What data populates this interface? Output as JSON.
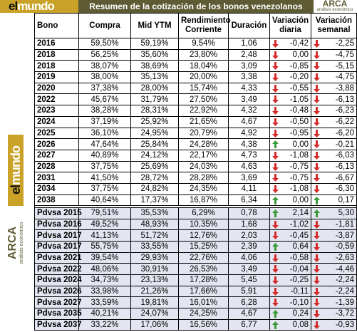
{
  "header": {
    "title": "Resumen de la cotización de los bonos venezolanos",
    "brand_left": [
      "el",
      "mundo"
    ],
    "brand_right": "ARCA",
    "brand_right_sub": "análisis económico"
  },
  "table": {
    "columns": [
      "Bono",
      "Compra",
      "Mid YTM",
      "Rendimiento Corriente",
      "Duración",
      "Variación diaria",
      "Variación semanal"
    ],
    "sections": [
      {
        "rows": [
          {
            "cells": [
              "2016",
              "59,50%",
              "59,19%",
              "9,54%",
              "1,06",
              "-0,42",
              "-2,25"
            ],
            "arrows": [
              "down",
              "down"
            ]
          },
          {
            "cells": [
              "2018",
              "56,25%",
              "35,60%",
              "23,80%",
              "2,48",
              "0,00",
              "-4,75"
            ],
            "arrows": [
              "down",
              "down"
            ]
          },
          {
            "cells": [
              "2018",
              "38,07%",
              "38,69%",
              "18,04%",
              "3,09",
              "-0,85",
              "-5,15"
            ],
            "arrows": [
              "down",
              "down"
            ]
          },
          {
            "cells": [
              "2019",
              "38,00%",
              "35,13%",
              "20,00%",
              "3,38",
              "-0,20",
              "-4,75"
            ],
            "arrows": [
              "down",
              "down"
            ]
          },
          {
            "cells": [
              "2020",
              "37,38%",
              "28,00%",
              "15,74%",
              "4,33",
              "-0,55",
              "-3,88"
            ],
            "arrows": [
              "down",
              "down"
            ]
          },
          {
            "cells": [
              "2022",
              "45,67%",
              "31,79%",
              "27,50%",
              "3,49",
              "-1,05",
              "-6,13"
            ],
            "arrows": [
              "down",
              "down"
            ]
          },
          {
            "cells": [
              "2023",
              "38,28%",
              "28,31%",
              "22,92%",
              "4,32",
              "-0,48",
              "-6,23"
            ],
            "arrows": [
              "down",
              "down"
            ]
          },
          {
            "cells": [
              "2024",
              "37,19%",
              "25,92%",
              "21,65%",
              "4,67",
              "-0,50",
              "-6,22"
            ],
            "arrows": [
              "down",
              "down"
            ]
          },
          {
            "cells": [
              "2025",
              "36,10%",
              "24,95%",
              "20,79%",
              "4,92",
              "-0,95",
              "-6,20"
            ],
            "arrows": [
              "down",
              "down"
            ]
          },
          {
            "cells": [
              "2026",
              "47,64%",
              "25,84%",
              "24,28%",
              "4,38",
              "0,00",
              "-0,21"
            ],
            "arrows": [
              "up",
              "down"
            ]
          },
          {
            "cells": [
              "2027",
              "40,89%",
              "24,12%",
              "22,17%",
              "4,73",
              "-1,08",
              "-6,03"
            ],
            "arrows": [
              "down",
              "down"
            ]
          },
          {
            "cells": [
              "2028",
              "37,75%",
              "25,69%",
              "24,03%",
              "4,63",
              "-0,75",
              "-6,13"
            ],
            "arrows": [
              "down",
              "down"
            ]
          },
          {
            "cells": [
              "2031",
              "41,50%",
              "28,72%",
              "28,28%",
              "3,69",
              "-0,75",
              "-6,67"
            ],
            "arrows": [
              "down",
              "down"
            ]
          },
          {
            "cells": [
              "2034",
              "37,75%",
              "24,82%",
              "24,35%",
              "4,11",
              "-1,08",
              "-6,30"
            ],
            "arrows": [
              "down",
              "down"
            ]
          },
          {
            "cells": [
              "2038",
              "40,64%",
              "17,37%",
              "16,87%",
              "6,34",
              "0,00",
              "0,17"
            ],
            "arrows": [
              "up",
              "up"
            ]
          }
        ]
      },
      {
        "rows": [
          {
            "cells": [
              "Pdvsa 2015",
              "79,51%",
              "35,53%",
              "6,29%",
              "0,78",
              "2,14",
              "5,30"
            ],
            "arrows": [
              "up",
              "up"
            ]
          },
          {
            "cells": [
              "Pdvsa 2016",
              "49,52%",
              "48,93%",
              "10,35%",
              "1,68",
              "-1,02",
              "-1,81"
            ],
            "arrows": [
              "down",
              "down"
            ]
          },
          {
            "cells": [
              "Pdvsa 2017",
              "41,13%",
              "51,72%",
              "12,76%",
              "2,03",
              "-0,45",
              "-3,87"
            ],
            "arrows": [
              "down",
              "down"
            ]
          },
          {
            "cells": [
              "Pdvsa 2017",
              "55,75%",
              "33,55%",
              "15,25%",
              "2,39",
              "0,64",
              "-0,59"
            ],
            "arrows": [
              "up",
              "down"
            ]
          },
          {
            "cells": [
              "Pdvsa 2021",
              "39,54%",
              "29,93%",
              "22,76%",
              "4,06",
              "-0,58",
              "-2,63"
            ],
            "arrows": [
              "down",
              "down"
            ]
          },
          {
            "cells": [
              "Pdvsa 2022",
              "48,06%",
              "30,91%",
              "26,53%",
              "3,49",
              "-0,04",
              "-4,46"
            ],
            "arrows": [
              "down",
              "down"
            ]
          },
          {
            "cells": [
              "Pdvsa 2024",
              "34,73%",
              "23,13%",
              "17,28%",
              "5,45",
              "-0,25",
              "-2,24"
            ],
            "arrows": [
              "down",
              "down"
            ]
          },
          {
            "cells": [
              "Pdvsa 2026",
              "33,98%",
              "21,26%",
              "17,66%",
              "5,91",
              "-0,11",
              "-2,24"
            ],
            "arrows": [
              "down",
              "down"
            ]
          },
          {
            "cells": [
              "Pdvsa 2027",
              "33,59%",
              "19,81%",
              "16,01%",
              "6,28",
              "-0,10",
              "-1,39"
            ],
            "arrows": [
              "down",
              "down"
            ]
          },
          {
            "cells": [
              "Pdvsa 2035",
              "40,21%",
              "24,07%",
              "24,25%",
              "4,67",
              "0,24",
              "-3,72"
            ],
            "arrows": [
              "up",
              "down"
            ]
          },
          {
            "cells": [
              "Pdvsa 2037",
              "33,22%",
              "17,06%",
              "16,56%",
              "6,77",
              "0,08",
              "-0,93"
            ],
            "arrows": [
              "up",
              "down"
            ]
          }
        ]
      }
    ]
  }
}
